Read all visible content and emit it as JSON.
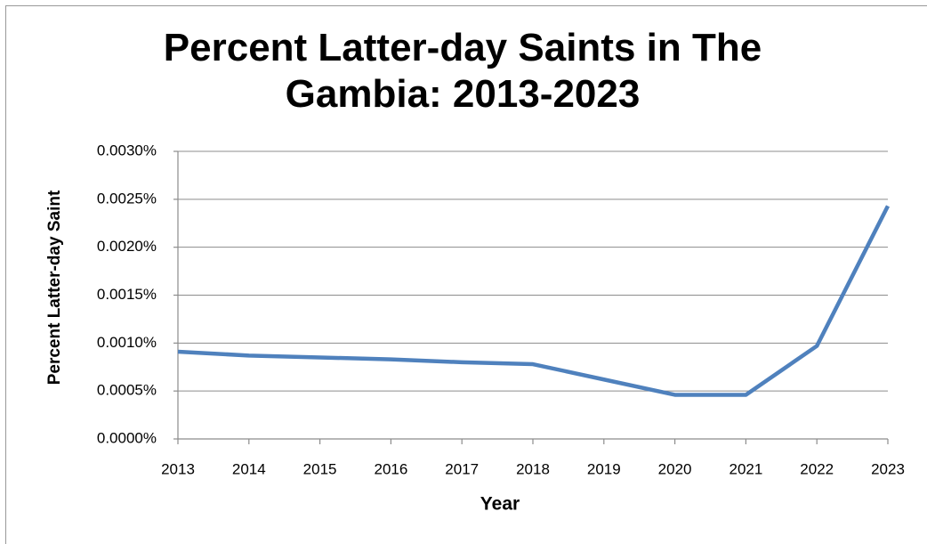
{
  "chart_data": {
    "type": "line",
    "title": "Percent Latter-day Saints in The Gambia: 2013-2023",
    "x_label": "Year",
    "y_label": "Percent Latter-day Saint",
    "x": [
      2013,
      2014,
      2015,
      2016,
      2017,
      2018,
      2019,
      2020,
      2021,
      2022,
      2023
    ],
    "series": [
      {
        "name": "Percent Latter-day Saint",
        "color": "#4f81bd",
        "values": [
          0.00091,
          0.00087,
          0.00085,
          0.00083,
          0.0008,
          0.00078,
          0.00062,
          0.00046,
          0.00046,
          0.00097,
          0.00243
        ]
      }
    ],
    "xlim": [
      2013,
      2023
    ],
    "xticks": [
      2013,
      2014,
      2015,
      2016,
      2017,
      2018,
      2019,
      2020,
      2021,
      2022,
      2023
    ],
    "ylim": [
      0,
      0.003
    ],
    "yticks": [
      {
        "value": 0,
        "label": "0.0000%"
      },
      {
        "value": 0.0005,
        "label": "0.0005%"
      },
      {
        "value": 0.001,
        "label": "0.0010%"
      },
      {
        "value": 0.0015,
        "label": "0.0015%"
      },
      {
        "value": 0.002,
        "label": "0.0020%"
      },
      {
        "value": 0.0025,
        "label": "0.0025%"
      },
      {
        "value": 0.003,
        "label": "0.0030%"
      }
    ],
    "grid": true
  }
}
